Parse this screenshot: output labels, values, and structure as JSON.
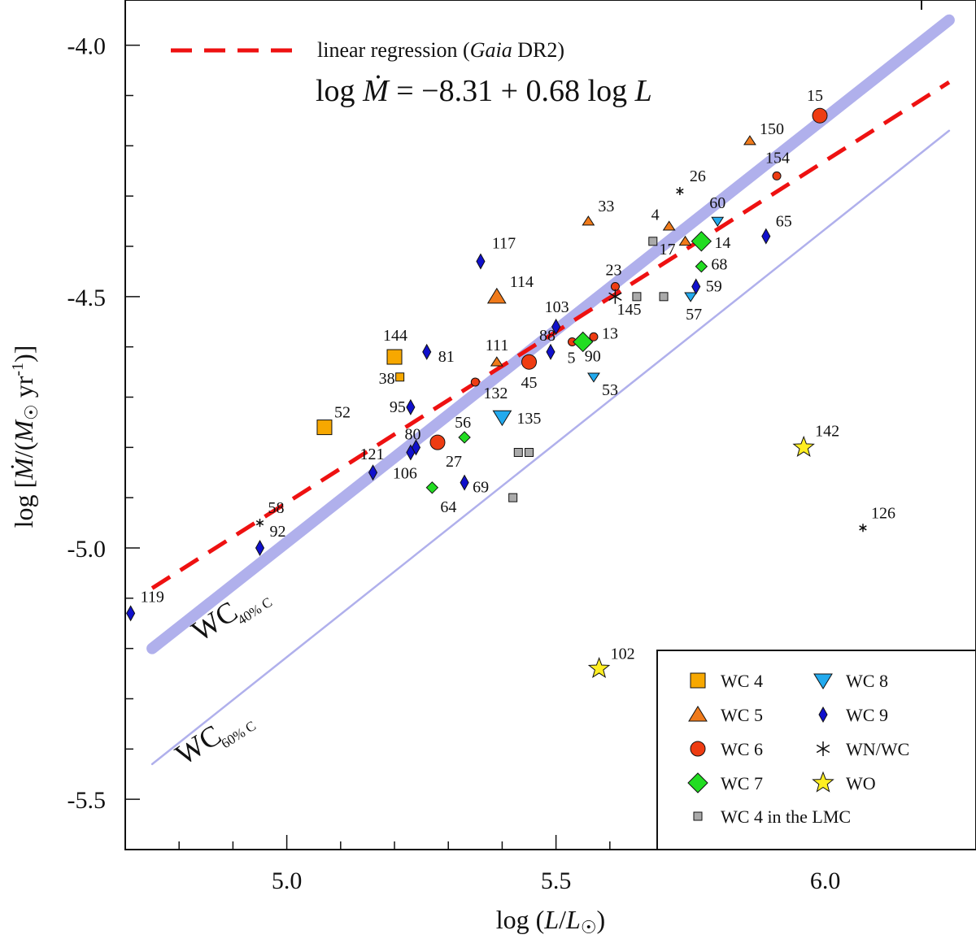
{
  "chart_data": {
    "type": "scatter",
    "title": "",
    "xlabel": {
      "main": "log (",
      "var": "L",
      "slash": "/",
      "var2": "L",
      "sun": "☉",
      "close": ")"
    },
    "ylabel": {
      "main": "log [",
      "var": "Ṁ",
      "mid": "/(",
      "var2": "M",
      "sun": "☉",
      "unit": " yr",
      "exp": "-1",
      "close": ")]"
    },
    "xlim": [
      4.7,
      6.28
    ],
    "ylim": [
      -5.6,
      -3.91
    ],
    "x_ticks": [
      {
        "v": 5.0,
        "label": "5.0"
      },
      {
        "v": 5.5,
        "label": "5.5"
      },
      {
        "v": 6.0,
        "label": "6.0"
      }
    ],
    "y_ticks": [
      {
        "v": -4.0,
        "label": "-4.0"
      },
      {
        "v": -4.5,
        "label": "-4.5"
      },
      {
        "v": -5.0,
        "label": "-5.0"
      },
      {
        "v": -5.5,
        "label": "-5.5"
      }
    ],
    "colors": {
      "WC4": "#f7a800",
      "WC5": "#f07a1a",
      "WC6": "#ee3c12",
      "WC7": "#22dd22",
      "WC8": "#22aaee",
      "WC9": "#1010cc",
      "WNWC": "#111111",
      "WO": "#ffee22",
      "LMC": "#aaaaaa",
      "regression": "#ee1111",
      "model": "#b0b0ec"
    },
    "regression": {
      "legend": "linear regression (",
      "legend_italic": "Gaia",
      "legend_end": " DR2)",
      "equation": {
        "lhs": "log ",
        "mdot": "Ṁ",
        "rhs": " = −8.31 + 0.68 log ",
        "var": "L"
      },
      "intercept": -8.31,
      "slope": 0.68,
      "x_range": [
        4.75,
        6.23
      ]
    },
    "model_lines": [
      {
        "name": "WC40",
        "label": "WC",
        "subscript": "40% C",
        "x": [
          4.75,
          6.23
        ],
        "y": [
          -5.2,
          -3.95
        ],
        "thick": true
      },
      {
        "name": "WC60",
        "label": "WC",
        "subscript": "60% C",
        "x": [
          4.75,
          6.23
        ],
        "y": [
          -5.43,
          -4.17
        ],
        "thick": false
      }
    ],
    "series": [
      {
        "name": "WC 4",
        "key": "WC4",
        "marker": "square",
        "points": [
          {
            "id": "144",
            "x": 5.2,
            "y": -4.62,
            "size": "large",
            "lx": -14,
            "ly": -20
          },
          {
            "id": "52",
            "x": 5.07,
            "y": -4.76,
            "size": "large",
            "lx": 12,
            "ly": -12
          },
          {
            "id": "38",
            "x": 5.21,
            "y": -4.66,
            "size": "small",
            "lx": -26,
            "ly": 8
          }
        ]
      },
      {
        "name": "WC 5",
        "key": "WC5",
        "marker": "triangle-up",
        "points": [
          {
            "id": "150",
            "x": 5.86,
            "y": -4.19,
            "size": "small",
            "lx": 12,
            "ly": -8
          },
          {
            "id": "33",
            "x": 5.56,
            "y": -4.35,
            "size": "small",
            "lx": 12,
            "ly": -12
          },
          {
            "id": "4",
            "x": 5.71,
            "y": -4.36,
            "size": "small",
            "lx": -22,
            "ly": -8
          },
          {
            "id": "17",
            "x": 5.74,
            "y": -4.39,
            "size": "small",
            "lx": -32,
            "ly": 16
          },
          {
            "id": "114",
            "x": 5.39,
            "y": -4.5,
            "size": "large",
            "lx": 16,
            "ly": -12
          },
          {
            "id": "111",
            "x": 5.39,
            "y": -4.63,
            "size": "small",
            "lx": -14,
            "ly": -14
          }
        ]
      },
      {
        "name": "WC 6",
        "key": "WC6",
        "marker": "circle",
        "points": [
          {
            "id": "15",
            "x": 5.99,
            "y": -4.14,
            "size": "large",
            "lx": -16,
            "ly": -18
          },
          {
            "id": "154",
            "x": 5.91,
            "y": -4.26,
            "size": "small",
            "lx": -14,
            "ly": -16
          },
          {
            "id": "23",
            "x": 5.61,
            "y": -4.48,
            "size": "small",
            "lx": -12,
            "ly": -14
          },
          {
            "id": "13",
            "x": 5.57,
            "y": -4.58,
            "size": "small",
            "lx": 10,
            "ly": 2
          },
          {
            "id": "5",
            "x": 5.53,
            "y": -4.59,
            "size": "small",
            "lx": -6,
            "ly": 26
          },
          {
            "id": "45",
            "x": 5.45,
            "y": -4.63,
            "size": "large",
            "lx": -10,
            "ly": 32
          },
          {
            "id": "132",
            "x": 5.35,
            "y": -4.67,
            "size": "small",
            "lx": 10,
            "ly": 20
          },
          {
            "id": "27",
            "x": 5.28,
            "y": -4.79,
            "size": "large",
            "lx": 10,
            "ly": 30
          }
        ]
      },
      {
        "name": "WC 7",
        "key": "WC7",
        "marker": "diamond",
        "points": [
          {
            "id": "14",
            "x": 5.77,
            "y": -4.39,
            "size": "large",
            "lx": 16,
            "ly": 8
          },
          {
            "id": "68",
            "x": 5.77,
            "y": -4.44,
            "size": "small",
            "lx": 12,
            "ly": 4
          },
          {
            "id": "56",
            "x": 5.33,
            "y": -4.78,
            "size": "small",
            "lx": -12,
            "ly": -12
          },
          {
            "id": "64",
            "x": 5.27,
            "y": -4.88,
            "size": "small",
            "lx": 0,
            "ly": 30
          },
          {
            "id": "90",
            "x": 5.55,
            "y": -4.59,
            "size": "large",
            "lx": 2,
            "ly": 24
          }
        ]
      },
      {
        "name": "WC 8",
        "key": "WC8",
        "marker": "triangle-down",
        "points": [
          {
            "id": "60",
            "x": 5.8,
            "y": -4.35,
            "size": "small",
            "lx": -10,
            "ly": -16
          },
          {
            "id": "57",
            "x": 5.75,
            "y": -4.5,
            "size": "small",
            "lx": -6,
            "ly": 28
          },
          {
            "id": "53",
            "x": 5.57,
            "y": -4.66,
            "size": "small",
            "lx": 10,
            "ly": 22
          },
          {
            "id": "135",
            "x": 5.4,
            "y": -4.74,
            "size": "large",
            "lx": 18,
            "ly": 8
          }
        ]
      },
      {
        "name": "WC 9",
        "key": "WC9",
        "marker": "thin-diamond",
        "points": [
          {
            "id": "117",
            "x": 5.36,
            "y": -4.43,
            "size": "small",
            "lx": 14,
            "ly": -16
          },
          {
            "id": "65",
            "x": 5.89,
            "y": -4.38,
            "size": "small",
            "lx": 12,
            "ly": -12
          },
          {
            "id": "59",
            "x": 5.76,
            "y": -4.48,
            "size": "small",
            "lx": 12,
            "ly": 6
          },
          {
            "id": "103",
            "x": 5.5,
            "y": -4.56,
            "size": "small",
            "lx": -14,
            "ly": -18
          },
          {
            "id": "88",
            "x": 5.49,
            "y": -4.61,
            "size": "small",
            "lx": -14,
            "ly": -14
          },
          {
            "id": "81",
            "x": 5.26,
            "y": -4.61,
            "size": "small",
            "lx": 14,
            "ly": 12
          },
          {
            "id": "95",
            "x": 5.23,
            "y": -4.72,
            "size": "small",
            "lx": -26,
            "ly": 6
          },
          {
            "id": "80",
            "x": 5.24,
            "y": -4.8,
            "size": "small",
            "lx": -14,
            "ly": -10
          },
          {
            "id": "106",
            "x": 5.23,
            "y": -4.81,
            "size": "small",
            "lx": -22,
            "ly": 32
          },
          {
            "id": "121",
            "x": 5.16,
            "y": -4.85,
            "size": "small",
            "lx": -16,
            "ly": -16
          },
          {
            "id": "69",
            "x": 5.33,
            "y": -4.87,
            "size": "small",
            "lx": 10,
            "ly": 12
          },
          {
            "id": "92",
            "x": 4.95,
            "y": -5.0,
            "size": "small",
            "lx": 12,
            "ly": -14
          },
          {
            "id": "119",
            "x": 4.71,
            "y": -5.13,
            "size": "small",
            "lx": 12,
            "ly": -14
          }
        ]
      },
      {
        "name": "WN/WC",
        "key": "WNWC",
        "marker": "asterisk",
        "points": [
          {
            "id": "26",
            "x": 5.73,
            "y": -4.29,
            "size": "small",
            "lx": 12,
            "ly": -12
          },
          {
            "id": "145",
            "x": 5.61,
            "y": -4.5,
            "size": "large",
            "lx": 2,
            "ly": 22
          },
          {
            "id": "58",
            "x": 4.95,
            "y": -4.95,
            "size": "small",
            "lx": 10,
            "ly": -12
          },
          {
            "id": "126",
            "x": 6.07,
            "y": -4.96,
            "size": "small",
            "lx": 10,
            "ly": -12
          }
        ]
      },
      {
        "name": "WO",
        "key": "WO",
        "marker": "star",
        "points": [
          {
            "id": "142",
            "x": 5.96,
            "y": -4.8,
            "size": "large",
            "lx": 14,
            "ly": -14
          },
          {
            "id": "102",
            "x": 5.58,
            "y": -5.24,
            "size": "large",
            "lx": 14,
            "ly": -12
          }
        ]
      },
      {
        "name": "WC 4 in the LMC",
        "key": "LMC",
        "marker": "small-square",
        "points": [
          {
            "id": "",
            "x": 5.68,
            "y": -4.39
          },
          {
            "id": "",
            "x": 5.65,
            "y": -4.5
          },
          {
            "id": "",
            "x": 5.7,
            "y": -4.5
          },
          {
            "id": "",
            "x": 5.43,
            "y": -4.81
          },
          {
            "id": "",
            "x": 5.45,
            "y": -4.81
          },
          {
            "id": "",
            "x": 5.42,
            "y": -4.9
          }
        ]
      }
    ],
    "legend": {
      "position": "bottom-right",
      "items": [
        {
          "label": "WC 4",
          "key": "WC4",
          "marker": "square"
        },
        {
          "label": "WC 8",
          "key": "WC8",
          "marker": "triangle-down"
        },
        {
          "label": "WC 5",
          "key": "WC5",
          "marker": "triangle-up"
        },
        {
          "label": "WC 9",
          "key": "WC9",
          "marker": "thin-diamond"
        },
        {
          "label": "WC 6",
          "key": "WC6",
          "marker": "circle"
        },
        {
          "label": "WN/WC",
          "key": "WNWC",
          "marker": "asterisk"
        },
        {
          "label": "WC 7",
          "key": "WC7",
          "marker": "diamond"
        },
        {
          "label": "WO",
          "key": "WO",
          "marker": "star"
        },
        {
          "label": "WC 4 in the LMC",
          "key": "LMC",
          "marker": "small-square"
        }
      ]
    }
  }
}
